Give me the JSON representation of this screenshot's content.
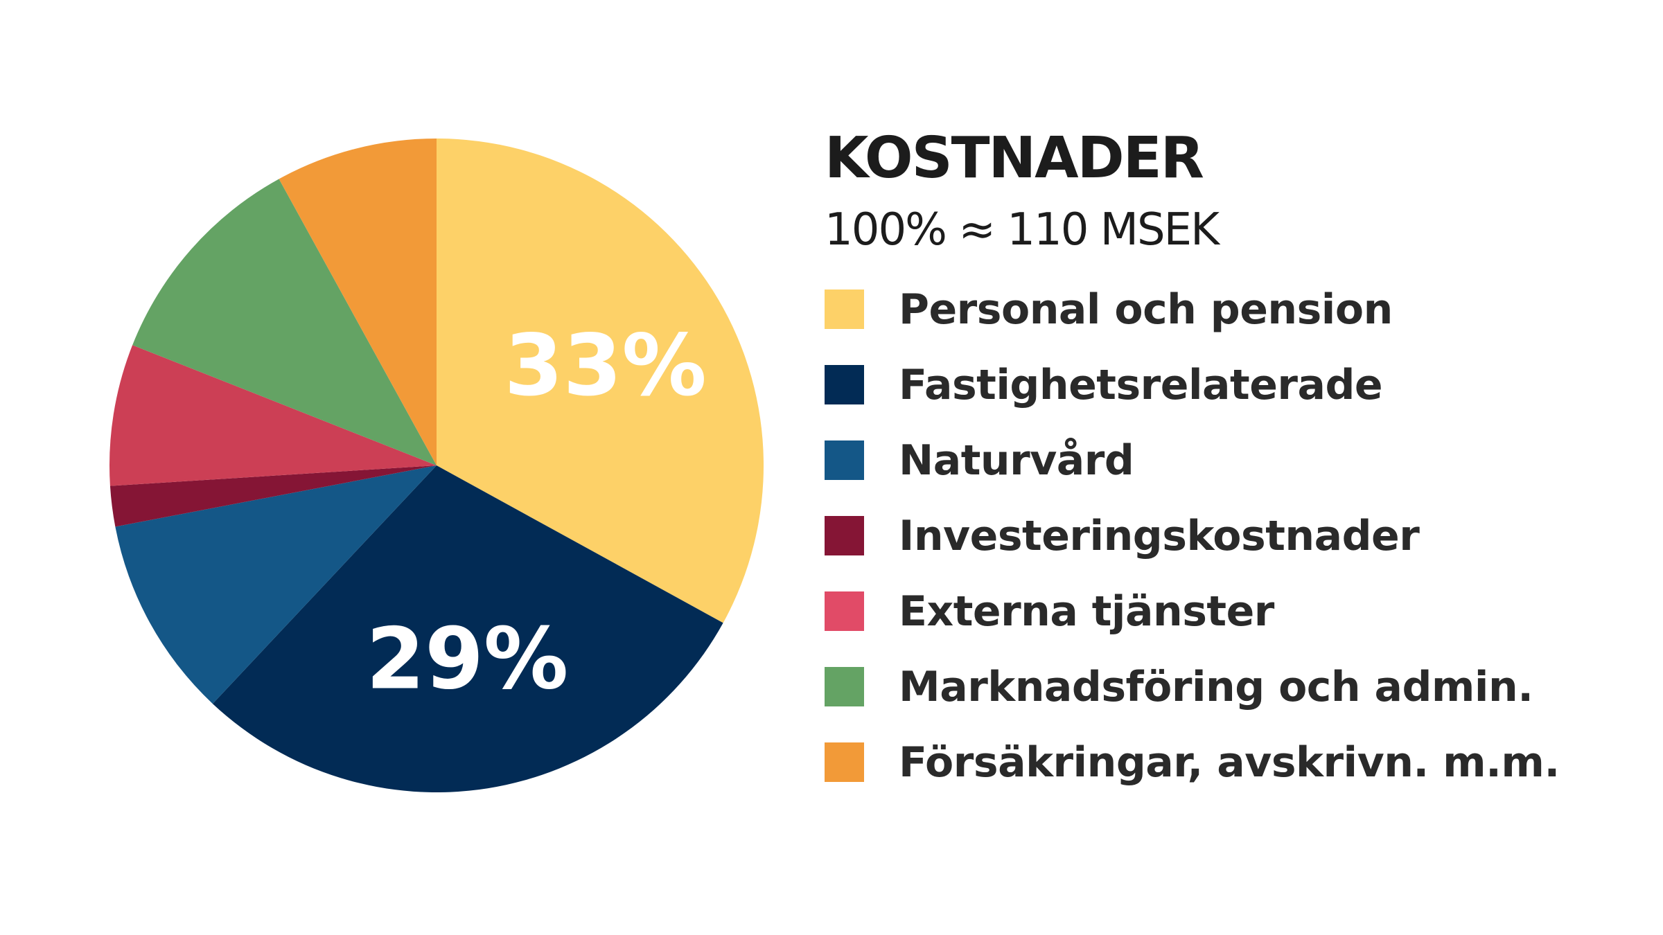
{
  "chart_data": {
    "type": "pie",
    "title": "KOSTNADER",
    "subtitle": "100% ≈ 110 MSEK",
    "total": "110 MSEK",
    "unit": "%",
    "start_angle_deg": 0,
    "direction": "clockwise",
    "categories": [
      "Personal och pension",
      "Fastighetsrelaterade",
      "Naturvård",
      "Investeringskostnader",
      "Externa tjänster",
      "Marknadsföring och admin.",
      "Försäkringar, avskrivn. m.m."
    ],
    "values": [
      33,
      29,
      10,
      2,
      7,
      11,
      8
    ],
    "colors": [
      "#FDD168",
      "#022B55",
      "#145787",
      "#851535",
      "#CC3F55",
      "#64A364",
      "#F29A38"
    ],
    "legend_colors": [
      "#FDD168",
      "#022B55",
      "#145787",
      "#851535",
      "#E14B67",
      "#64A364",
      "#F29A38"
    ],
    "data_labels": [
      "33%",
      "29%",
      "",
      "",
      "",
      "",
      ""
    ],
    "legend_position": "right"
  }
}
